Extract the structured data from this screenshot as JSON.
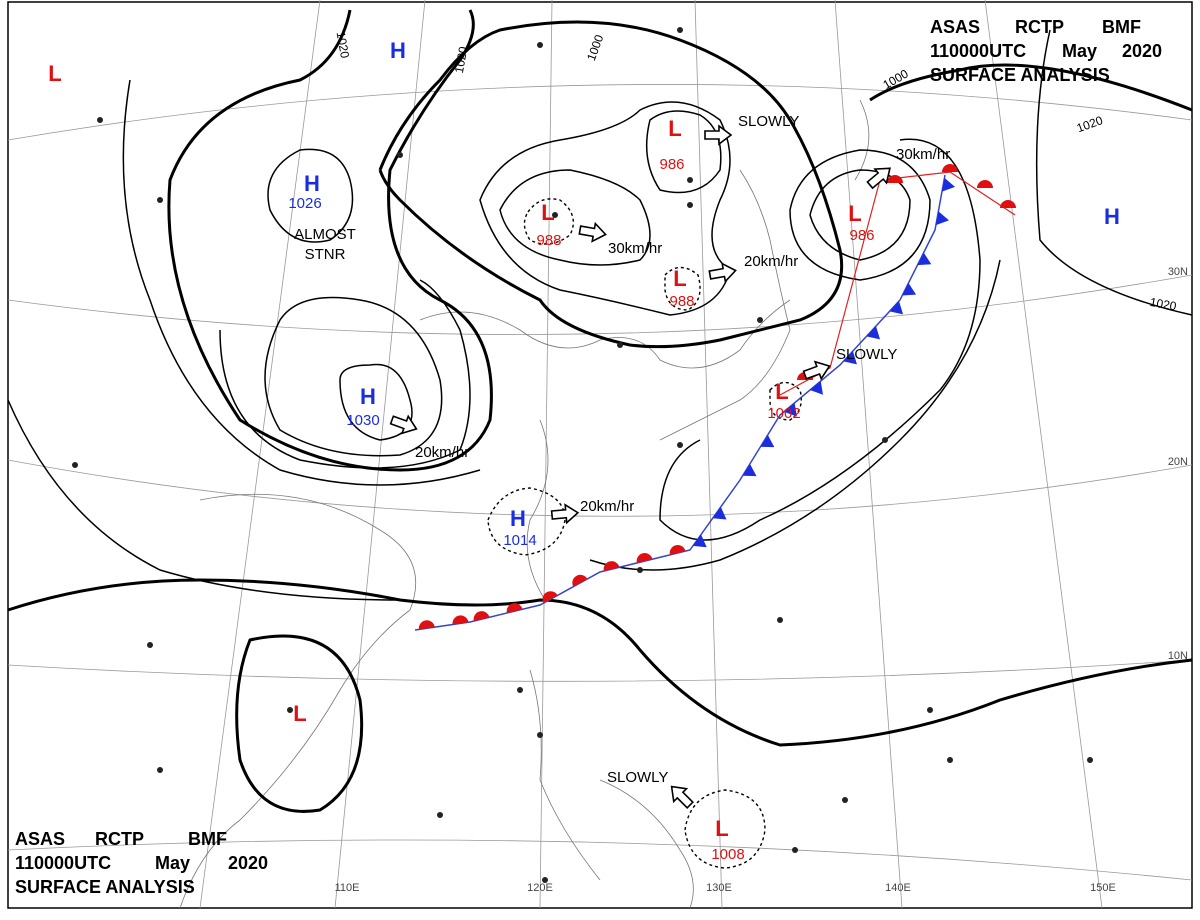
{
  "header_top": {
    "line1": [
      "ASAS",
      "RCTP",
      "BMF"
    ],
    "line2": [
      "110000UTC",
      "May",
      "2020"
    ],
    "line3": "SURFACE ANALYSIS"
  },
  "header_bottom": {
    "line1": [
      "ASAS",
      "RCTP",
      "BMF"
    ],
    "line2": [
      "110000UTC",
      "May",
      "2020"
    ],
    "line3": "SURFACE ANALYSIS"
  },
  "centers": [
    {
      "symbol": "H"
    },
    {
      "symbol": "L"
    },
    {
      "symbol": "H",
      "pressure": "1026"
    },
    {
      "symbol": "H",
      "pressure": "1030"
    },
    {
      "symbol": "L",
      "pressure": "988"
    },
    {
      "symbol": "L",
      "pressure": "986"
    },
    {
      "symbol": "L",
      "pressure": "988"
    },
    {
      "symbol": "L",
      "pressure": "986"
    },
    {
      "symbol": "L",
      "pressure": "1002"
    },
    {
      "symbol": "H",
      "pressure": "1014"
    },
    {
      "symbol": "L"
    },
    {
      "symbol": "L",
      "pressure": "1008"
    },
    {
      "symbol": "H"
    }
  ],
  "motions": [
    "SLOWLY",
    "30km/hr",
    "20km/hr",
    "30km/hr",
    "SLOWLY",
    "20km/hr",
    "20km/hr",
    "SLOWLY"
  ],
  "notes": [
    "ALMOST",
    "STNR"
  ],
  "isobar_labels": [
    "1020",
    "1020",
    "1000",
    "1000",
    "1020",
    "1020"
  ],
  "lat_labels": [
    "30N",
    "20N",
    "10N"
  ],
  "lon_labels": [
    "110E",
    "120E",
    "130E",
    "140E",
    "150E"
  ]
}
